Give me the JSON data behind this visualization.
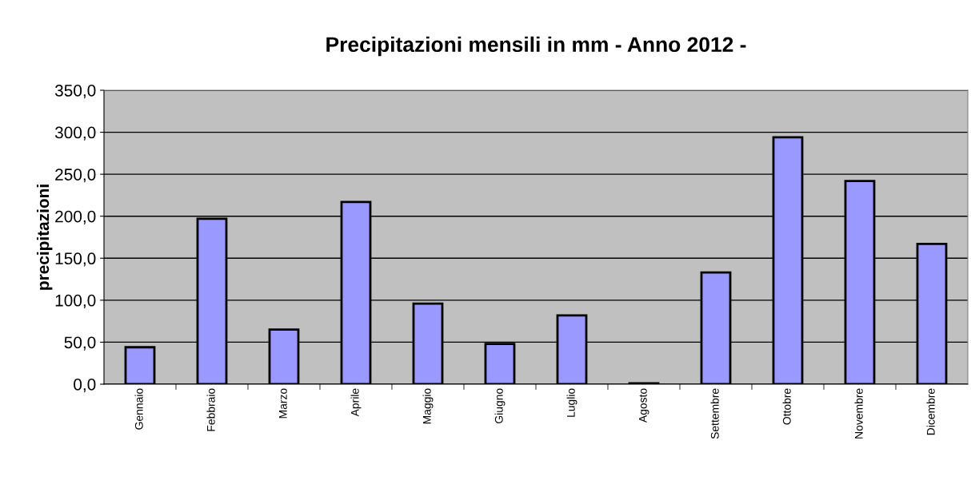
{
  "chart_data": {
    "type": "bar",
    "title": "Precipitazioni mensili in mm - Anno 2012 -",
    "ylabel": "precipitazioni",
    "categories": [
      "Gennaio",
      "Febbraio",
      "Marzo",
      "Aprile",
      "Maggio",
      "Giugno",
      "Luglio",
      "Agosto",
      "Settembre",
      "Ottobre",
      "Novembre",
      "Dicembre"
    ],
    "values": [
      44,
      197,
      65,
      217,
      96,
      48,
      82,
      1,
      133,
      294,
      242,
      167
    ],
    "color": "#9999ff",
    "ylim": [
      0,
      350
    ],
    "yticks": [
      {
        "value": 0,
        "label": "0,0"
      },
      {
        "value": 50,
        "label": "50,0"
      },
      {
        "value": 100,
        "label": "100,0"
      },
      {
        "value": 150,
        "label": "150,0"
      },
      {
        "value": 200,
        "label": "200,0"
      },
      {
        "value": 250,
        "label": "250,0"
      },
      {
        "value": 300,
        "label": "300,0"
      },
      {
        "value": 350,
        "label": "350,0"
      }
    ],
    "grid": "y",
    "legend": false
  }
}
